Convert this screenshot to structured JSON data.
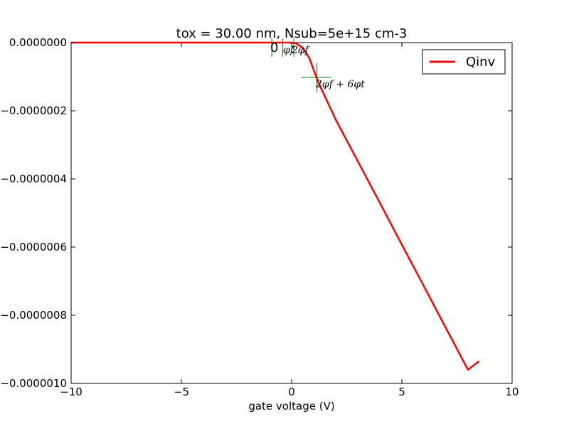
{
  "chart_data": {
    "type": "line",
    "title": "tox = 30.00 nm, Nsub=5e+15 cm-3",
    "xlabel": "gate voltage (V)",
    "ylabel": "",
    "xlim": [
      -10,
      10
    ],
    "ylim": [
      -1e-06,
      0.0
    ],
    "xticks": [
      -10,
      -5,
      0,
      5,
      10
    ],
    "xtick_labels": [
      "−10",
      "−5",
      "0",
      "5",
      "10"
    ],
    "yticks": [
      0.0,
      -2e-07,
      -4e-07,
      -6e-07,
      -8e-07,
      -1e-06
    ],
    "ytick_labels": [
      "0.0000000",
      "−0.0000002",
      "−0.0000004",
      "−0.0000006",
      "−0.0000008",
      "−0.0000010"
    ],
    "grid": false,
    "legend": {
      "placement": "top-right",
      "entries": [
        {
          "name": "Qinv",
          "color": "#ff0000"
        }
      ]
    },
    "series": [
      {
        "name": "Qinv",
        "color": "#ff0000",
        "x": [
          -10,
          -5,
          -1,
          0,
          0.2,
          0.5,
          0.8,
          1.0,
          1.2,
          2,
          3,
          4,
          5,
          6,
          7,
          8,
          8.5
        ],
        "y": [
          0,
          0,
          0,
          0,
          -2e-09,
          -1.5e-08,
          -4.5e-08,
          -8e-08,
          -1.15e-07,
          -2.26e-07,
          -3.48e-07,
          -4.7e-07,
          -5.93e-07,
          -7.15e-07,
          -8.38e-07,
          -9.6e-07,
          -9.35e-07
        ]
      }
    ],
    "secondary_lines": [
      {
        "color": "#8b4513",
        "x": [
          -10,
          0.2
        ],
        "y": [
          0,
          0
        ]
      },
      {
        "color": "#6b8e23",
        "x": [
          -10,
          -0.5
        ],
        "y": [
          0,
          0
        ]
      }
    ],
    "annotations": [
      {
        "label": "0",
        "x": -0.9,
        "y": -4e-08
      },
      {
        "label": "φ_f",
        "x": -0.4,
        "y": -4e-08
      },
      {
        "label": "2φ_f",
        "x": 0.1,
        "y": -4e-08
      },
      {
        "label": "2φ_f + 6φ_t",
        "x": 1.15,
        "y": -1.15e-07
      }
    ],
    "markers_color": "#008000"
  }
}
